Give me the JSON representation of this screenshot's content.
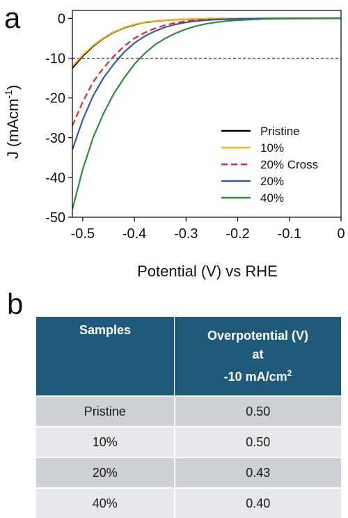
{
  "panel_a_label": "a",
  "panel_b_label": "b",
  "chart_data": {
    "type": "line",
    "xlabel": "Potential (V) vs RHE",
    "ylabel": "J (mAcm",
    "ylabel_sup": "-1",
    "ylabel_close": ")",
    "xlim": [
      -0.52,
      0.0
    ],
    "ylim": [
      -50,
      2
    ],
    "xticks": [
      -0.5,
      -0.4,
      -0.3,
      -0.2,
      -0.1,
      0
    ],
    "xtick_labels": [
      "-0.5",
      "-0.4",
      "-0.3",
      "-0.2",
      "-0.1",
      "0"
    ],
    "yticks": [
      0,
      -10,
      -20,
      -30,
      -40,
      -50
    ],
    "ytick_labels": [
      "0",
      "-10",
      "-20",
      "-30",
      "-40",
      "-50"
    ],
    "reference_line": {
      "y": -10,
      "style": "dashed",
      "color": "#000000"
    },
    "legend_position": "lower-right",
    "series": [
      {
        "name": "Pristine",
        "color": "#000000",
        "dash": false,
        "x": [
          -0.52,
          -0.5,
          -0.48,
          -0.46,
          -0.44,
          -0.42,
          -0.4,
          -0.38,
          -0.35,
          -0.32,
          -0.3,
          -0.25,
          -0.2,
          -0.1,
          0.0
        ],
        "y": [
          -12.5,
          -9.5,
          -7.0,
          -5.0,
          -3.5,
          -2.4,
          -1.6,
          -1.0,
          -0.55,
          -0.3,
          -0.2,
          -0.08,
          -0.03,
          0.0,
          0.0
        ]
      },
      {
        "name": "10%",
        "color": "#f5b81c",
        "dash": false,
        "x": [
          -0.52,
          -0.5,
          -0.48,
          -0.46,
          -0.44,
          -0.42,
          -0.4,
          -0.38,
          -0.35,
          -0.32,
          -0.3,
          -0.25,
          -0.2,
          -0.1,
          0.0
        ],
        "y": [
          -12.0,
          -9.2,
          -6.8,
          -4.9,
          -3.4,
          -2.3,
          -1.5,
          -0.95,
          -0.5,
          -0.28,
          -0.18,
          -0.07,
          -0.03,
          0.0,
          0.0
        ]
      },
      {
        "name": "20% Cross",
        "color": "#e3262b",
        "dash": true,
        "x": [
          -0.52,
          -0.5,
          -0.48,
          -0.46,
          -0.44,
          -0.42,
          -0.4,
          -0.38,
          -0.36,
          -0.34,
          -0.32,
          -0.3,
          -0.28,
          -0.25,
          -0.2,
          -0.1,
          0.0
        ],
        "y": [
          -27.0,
          -21.0,
          -16.0,
          -12.5,
          -9.5,
          -7.0,
          -5.0,
          -3.6,
          -2.5,
          -1.7,
          -1.1,
          -0.7,
          -0.45,
          -0.25,
          -0.08,
          -0.01,
          0.0
        ]
      },
      {
        "name": "20%",
        "color": "#3a56a8",
        "dash": false,
        "x": [
          -0.52,
          -0.5,
          -0.48,
          -0.46,
          -0.44,
          -0.42,
          -0.4,
          -0.38,
          -0.36,
          -0.34,
          -0.32,
          -0.3,
          -0.28,
          -0.25,
          -0.2,
          -0.1,
          0.0
        ],
        "y": [
          -33.0,
          -25.5,
          -19.5,
          -15.0,
          -11.5,
          -8.5,
          -6.2,
          -4.5,
          -3.2,
          -2.2,
          -1.5,
          -1.0,
          -0.65,
          -0.35,
          -0.12,
          -0.02,
          0.0
        ]
      },
      {
        "name": "40%",
        "color": "#2e8b3a",
        "dash": false,
        "x": [
          -0.52,
          -0.5,
          -0.48,
          -0.46,
          -0.44,
          -0.42,
          -0.4,
          -0.38,
          -0.36,
          -0.34,
          -0.32,
          -0.3,
          -0.28,
          -0.26,
          -0.24,
          -0.22,
          -0.2,
          -0.15,
          -0.1,
          0.0
        ],
        "y": [
          -48.0,
          -38.0,
          -30.0,
          -24.0,
          -19.0,
          -15.0,
          -11.5,
          -8.8,
          -6.6,
          -5.0,
          -3.7,
          -2.7,
          -1.9,
          -1.35,
          -0.95,
          -0.65,
          -0.45,
          -0.15,
          -0.05,
          0.0
        ]
      }
    ]
  },
  "table": {
    "header": {
      "col1": "Samples",
      "col2_line1": "Overpotential (V)",
      "col2_line2": "at",
      "col2_line3_main": "-10 mA/cm",
      "col2_line3_sup": "2"
    },
    "rows": [
      {
        "sample": "Pristine",
        "overpotential": "0.50"
      },
      {
        "sample": "10%",
        "overpotential": "0.50"
      },
      {
        "sample": "20%",
        "overpotential": "0.43"
      },
      {
        "sample": "40%",
        "overpotential": "0.40"
      }
    ]
  }
}
